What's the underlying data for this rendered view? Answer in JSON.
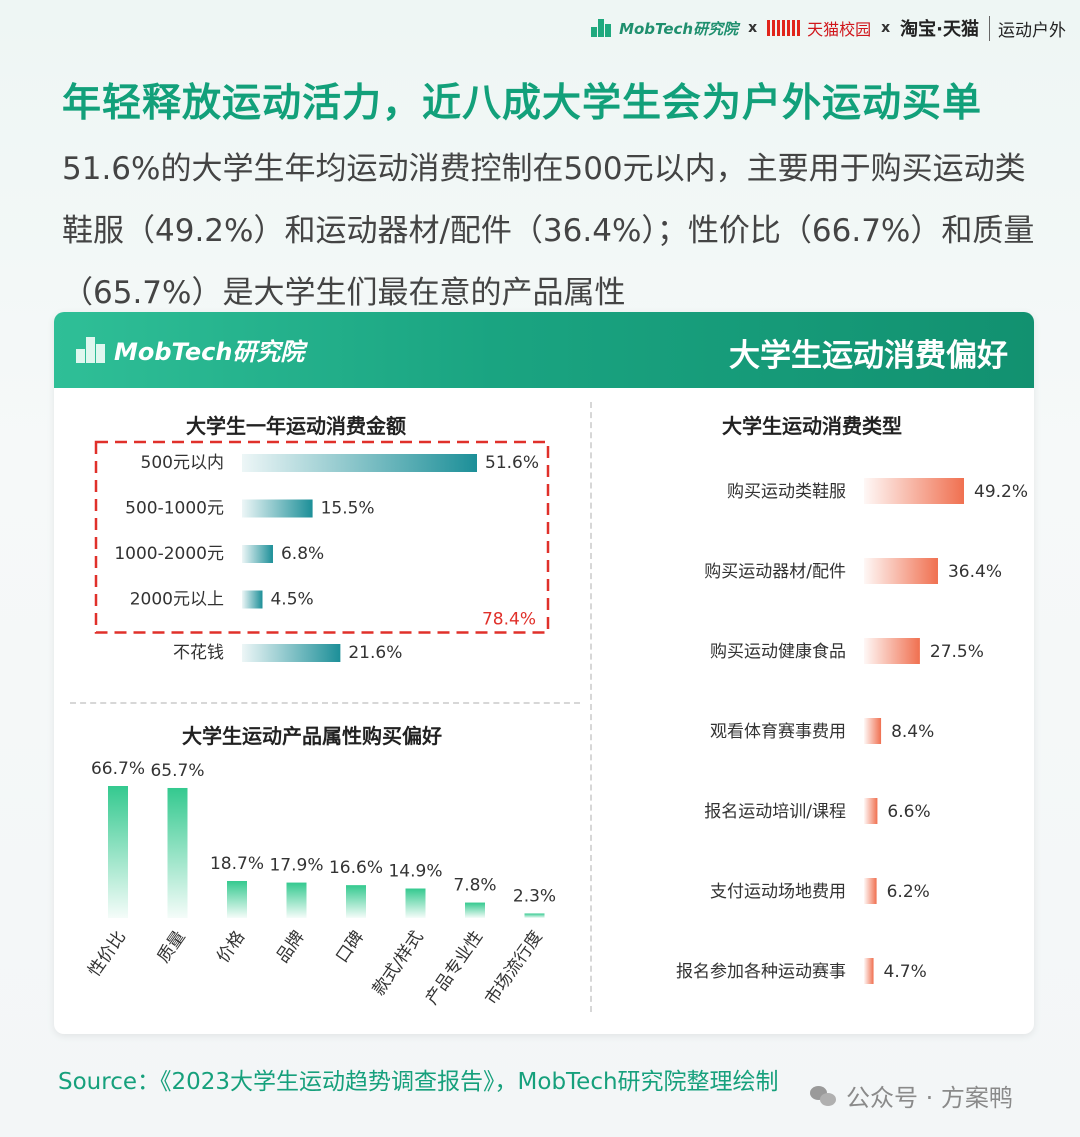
{
  "header": {
    "brand_mobtech": "MobTech研究院",
    "x1": "x",
    "brand_tmall_campus": "天猫校园",
    "x2": "x",
    "brand_taobao": "淘宝·天猫",
    "brand_sports": "运动户外"
  },
  "headline": "年轻释放运动活力，近八成大学生会为户外运动买单",
  "subtext": "51.6%的大学生年均运动消费控制在500元以内，主要用于购买运动类鞋服（49.2%）和运动器材/配件（36.4%）；性价比（66.7%）和质量（65.7%）是大学生们最在意的产品属性",
  "panel": {
    "logo_text": "MobTech研究院",
    "title": "大学生运动消费偏好"
  },
  "colors": {
    "accent_green": "#12a07a",
    "bar_teal": "#1c8f98",
    "bar_orange": "#f07050",
    "bar_green": "#34c98f",
    "highlight_red": "#e0302a"
  },
  "chart_data": [
    {
      "type": "bar",
      "orientation": "horizontal",
      "title": "大学生一年运动消费金额",
      "categories": [
        "500元以内",
        "500-1000元",
        "1000-2000元",
        "2000元以上",
        "不花钱"
      ],
      "values": [
        51.6,
        15.5,
        6.8,
        4.5,
        21.6
      ],
      "value_labels": [
        "51.6%",
        "15.5%",
        "6.8%",
        "4.5%",
        "21.6%"
      ],
      "highlight": {
        "categories": [
          "500元以内",
          "500-1000元",
          "1000-2000元",
          "2000元以上"
        ],
        "total_label": "78.4%"
      }
    },
    {
      "type": "bar",
      "orientation": "vertical",
      "title": "大学生运动产品属性购买偏好",
      "categories": [
        "性价比",
        "质量",
        "价格",
        "品牌",
        "口碑",
        "款式/样式",
        "产品专业性",
        "市场流行度"
      ],
      "values": [
        66.7,
        65.7,
        18.7,
        17.9,
        16.6,
        14.9,
        7.8,
        2.3
      ],
      "value_labels": [
        "66.7%",
        "65.7%",
        "18.7%",
        "17.9%",
        "16.6%",
        "14.9%",
        "7.8%",
        "2.3%"
      ]
    },
    {
      "type": "bar",
      "orientation": "horizontal",
      "title": "大学生运动消费类型",
      "categories": [
        "购买运动类鞋服",
        "购买运动器材/配件",
        "购买运动健康食品",
        "观看体育赛事费用",
        "报名运动培训/课程",
        "支付运动场地费用",
        "报名参加各种运动赛事"
      ],
      "values": [
        49.2,
        36.4,
        27.5,
        8.4,
        6.6,
        6.2,
        4.7
      ],
      "value_labels": [
        "49.2%",
        "36.4%",
        "27.5%",
        "8.4%",
        "6.6%",
        "6.2%",
        "4.7%"
      ]
    }
  ],
  "source": "Source：《2023大学生运动趋势调查报告》，MobTech研究院整理绘制",
  "watermark": "公众号 · 方案鸭"
}
